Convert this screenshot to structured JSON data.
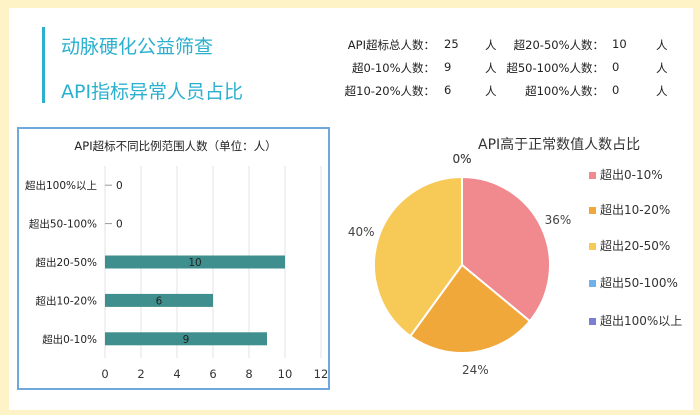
{
  "header": {
    "title_line1": "动脉硬化公益筛查",
    "title_line2": "API指标异常人员占比"
  },
  "stats": [
    {
      "label": "API超标总人数：",
      "value": "25",
      "unit": "人"
    },
    {
      "label": "超0-10%人数：",
      "value": "9",
      "unit": "人"
    },
    {
      "label": "超10-20%人数：",
      "value": "6",
      "unit": "人"
    },
    {
      "label": "超20-50%人数：",
      "value": "10",
      "unit": "人"
    },
    {
      "label": "超50-100%人数：",
      "value": "0",
      "unit": "人"
    },
    {
      "label": "超100%人数：",
      "value": "0",
      "unit": "人"
    }
  ],
  "chart_data": [
    {
      "type": "bar",
      "orientation": "horizontal",
      "title": "API超标不同比例范围人数（单位：人）",
      "categories": [
        "超出100%以上",
        "超出50-100%",
        "超出20-50%",
        "超出10-20%",
        "超出0-10%"
      ],
      "values": [
        0,
        0,
        10,
        6,
        9
      ],
      "xlim": [
        0,
        12
      ],
      "xticks": [
        0,
        2,
        4,
        6,
        8,
        10,
        12
      ],
      "grid": true,
      "color": "#3f8f8f"
    },
    {
      "type": "pie",
      "title": "API高于正常数值人数占比",
      "labels": [
        "超出0-10%",
        "超出10-20%",
        "超出20-50%",
        "超出50-100%",
        "超出100%以上"
      ],
      "values": [
        36,
        24,
        40,
        0,
        0
      ],
      "value_labels": [
        "36%",
        "24%",
        "40%",
        "0%",
        "0%"
      ],
      "colors": [
        "#f08a8f",
        "#f0a83a",
        "#f7c957",
        "#6fb1e8",
        "#7b7fd4"
      ],
      "legend": "right"
    }
  ]
}
